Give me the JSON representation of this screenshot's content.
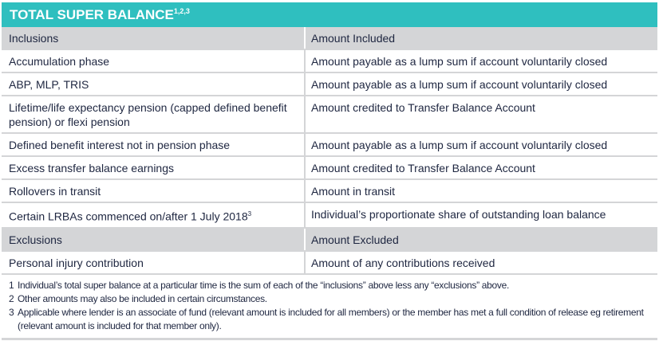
{
  "title": "TOTAL SUPER BALANCE",
  "title_sup": "1,2,3",
  "inclusions_header": [
    "Inclusions",
    "Amount Included"
  ],
  "inclusions": [
    {
      "item": "Accumulation phase",
      "sup": "",
      "amount": "Amount payable as a lump sum if account voluntarily closed"
    },
    {
      "item": "ABP, MLP, TRIS",
      "sup": "",
      "amount": "Amount payable as a lump sum if account voluntarily closed"
    },
    {
      "item": "Lifetime/life expectancy pension (capped defined benefit pension) or flexi pension",
      "sup": "",
      "amount": "Amount credited to Transfer Balance Account"
    },
    {
      "item": "Defined benefit interest not in pension phase",
      "sup": "",
      "amount": "Amount payable as a lump sum if account voluntarily closed"
    },
    {
      "item": "Excess transfer balance earnings",
      "sup": "",
      "amount": "Amount credited to Transfer Balance Account"
    },
    {
      "item": "Rollovers in transit",
      "sup": "",
      "amount": "Amount in transit"
    },
    {
      "item": "Certain LRBAs commenced on/after 1 July 2018",
      "sup": "3",
      "amount": "Individual’s proportionate share of outstanding loan balance"
    }
  ],
  "exclusions_header": [
    "Exclusions",
    "Amount Excluded"
  ],
  "exclusions": [
    {
      "item": "Personal injury contribution",
      "sup": "",
      "amount": "Amount of any contributions received"
    }
  ],
  "footnotes": [
    {
      "n": "1",
      "text": "Individual’s total super balance at a particular time is the sum of each of the “inclusions” above less any “exclusions” above."
    },
    {
      "n": "2",
      "text": "Other amounts may also be included in certain circumstances."
    },
    {
      "n": "3",
      "text": "Applicable where lender is an associate of fund (relevant amount is included for all members) or the member has met a full condition of release eg retirement (relevant amount is included for that member only)."
    }
  ],
  "colors": {
    "accent": "#2fbfbf",
    "header_row": "#d4d5d7",
    "text": "#1e2640"
  }
}
